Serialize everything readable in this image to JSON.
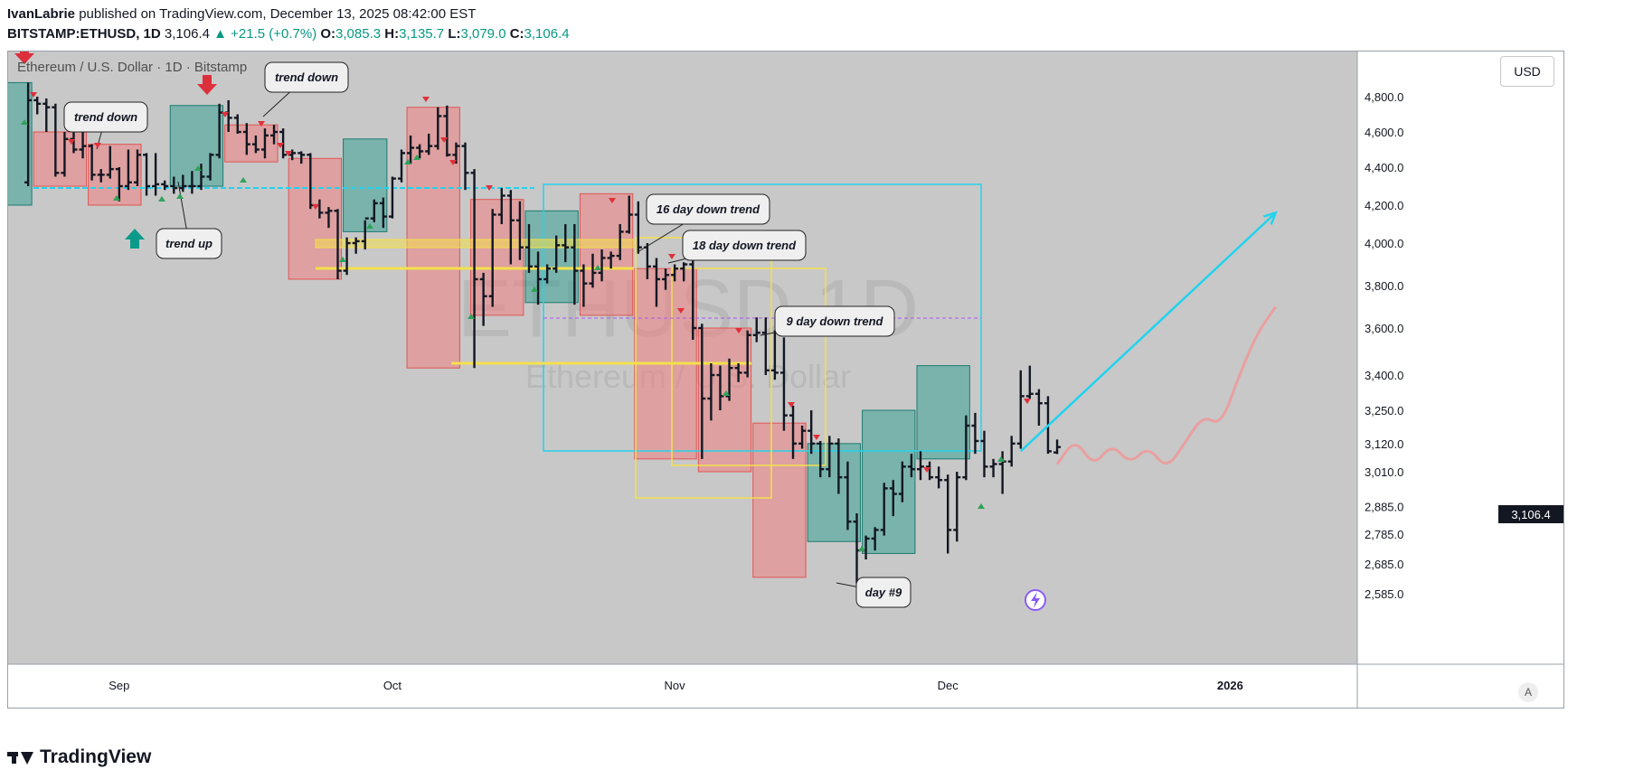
{
  "header": {
    "author": "IvanLabrie",
    "published_text": "published on TradingView.com, December 13, 2025 08:42:00 EST",
    "symbol": "BITSTAMP:ETHUSD, 1D",
    "last": "3,106.4",
    "change": "▲ +21.5 (+0.7%)",
    "o_label": "O:",
    "o": "3,085.3",
    "h_label": "H:",
    "h": "3,135.7",
    "l_label": "L:",
    "l": "3,079.0",
    "c_label": "C:",
    "c": "3,106.4"
  },
  "chart_title": "Ethereum / U.S. Dollar · 1D · Bitstamp",
  "currency_button": "USD",
  "last_price_tag": "3,106.4",
  "auto_button": "A",
  "brand": "TradingView",
  "chart_data": {
    "type": "bar",
    "watermark": {
      "symbol": "ETHUSD, 1D",
      "name": "Ethereum / U.S. Dollar"
    },
    "y_ticks": [
      4800,
      4600,
      4400,
      4200,
      4000,
      3800,
      3600,
      3400,
      3250,
      3010,
      2885,
      2785,
      2685,
      2585
    ],
    "y_tick_labels": [
      "4,800.0",
      "4,600.0",
      "4,400.0",
      "4,200.0",
      "4,000.0",
      "3,800.0",
      "3,600.0",
      "3,400.0",
      "3,250.0",
      "3,010.0",
      "2,885.0",
      "2,785.0",
      "2,685.0",
      "2,585.0"
    ],
    "y_extra_label": "3,120.0",
    "x_labels": [
      {
        "label": "Sep",
        "date": "2025-09-01"
      },
      {
        "label": "Oct",
        "date": "2025-10-01"
      },
      {
        "label": "Nov",
        "date": "2025-11-01"
      },
      {
        "label": "Dec",
        "date": "2025-12-01"
      },
      {
        "label": "2026",
        "date": "2026-01-01"
      }
    ],
    "last_price": 3106.4,
    "ohlc": [
      [
        "2025-08-22",
        4320,
        4880,
        4300,
        4780
      ],
      [
        "2025-08-23",
        4780,
        4800,
        4700,
        4760
      ],
      [
        "2025-08-24",
        4760,
        4790,
        4600,
        4740
      ],
      [
        "2025-08-25",
        4740,
        4760,
        4350,
        4370
      ],
      [
        "2025-08-26",
        4370,
        4600,
        4350,
        4560
      ],
      [
        "2025-08-27",
        4560,
        4620,
        4480,
        4500
      ],
      [
        "2025-08-28",
        4500,
        4620,
        4450,
        4520
      ],
      [
        "2025-08-29",
        4520,
        4530,
        4330,
        4360
      ],
      [
        "2025-08-30",
        4360,
        4390,
        4320,
        4360
      ],
      [
        "2025-08-31",
        4360,
        4520,
        4340,
        4390
      ],
      [
        "2025-09-01",
        4390,
        4400,
        4220,
        4300
      ],
      [
        "2025-09-02",
        4300,
        4500,
        4280,
        4320
      ],
      [
        "2025-09-03",
        4320,
        4500,
        4300,
        4470
      ],
      [
        "2025-09-04",
        4470,
        4480,
        4250,
        4300
      ],
      [
        "2025-09-05",
        4300,
        4480,
        4250,
        4310
      ],
      [
        "2025-09-06",
        4310,
        4330,
        4280,
        4300
      ],
      [
        "2025-09-07",
        4300,
        4350,
        4260,
        4290
      ],
      [
        "2025-09-08",
        4290,
        4360,
        4270,
        4300
      ],
      [
        "2025-09-09",
        4300,
        4380,
        4260,
        4300
      ],
      [
        "2025-09-10",
        4300,
        4420,
        4280,
        4350
      ],
      [
        "2025-09-11",
        4350,
        4480,
        4330,
        4470
      ],
      [
        "2025-09-12",
        4470,
        4760,
        4450,
        4710
      ],
      [
        "2025-09-13",
        4710,
        4780,
        4600,
        4680
      ],
      [
        "2025-09-14",
        4680,
        4700,
        4590,
        4600
      ],
      [
        "2025-09-15",
        4600,
        4650,
        4470,
        4530
      ],
      [
        "2025-09-16",
        4530,
        4580,
        4480,
        4500
      ],
      [
        "2025-09-17",
        4500,
        4620,
        4450,
        4580
      ],
      [
        "2025-09-18",
        4580,
        4640,
        4530,
        4600
      ],
      [
        "2025-09-19",
        4600,
        4620,
        4450,
        4470
      ],
      [
        "2025-09-20",
        4470,
        4500,
        4440,
        4480
      ],
      [
        "2025-09-21",
        4480,
        4490,
        4420,
        4470
      ],
      [
        "2025-09-22",
        4470,
        4480,
        4180,
        4200
      ],
      [
        "2025-09-23",
        4200,
        4230,
        4130,
        4160
      ],
      [
        "2025-09-24",
        4160,
        4190,
        4080,
        4170
      ],
      [
        "2025-09-25",
        4170,
        4180,
        3830,
        3870
      ],
      [
        "2025-09-26",
        3870,
        4030,
        3850,
        4000
      ],
      [
        "2025-09-27",
        4000,
        4030,
        3950,
        4010
      ],
      [
        "2025-09-28",
        4010,
        4120,
        3970,
        4130
      ],
      [
        "2025-09-29",
        4130,
        4230,
        4110,
        4210
      ],
      [
        "2025-09-30",
        4210,
        4240,
        4080,
        4140
      ],
      [
        "2025-10-01",
        4140,
        4350,
        4130,
        4340
      ],
      [
        "2025-10-02",
        4340,
        4500,
        4320,
        4480
      ],
      [
        "2025-10-03",
        4480,
        4580,
        4420,
        4510
      ],
      [
        "2025-10-04",
        4510,
        4530,
        4450,
        4490
      ],
      [
        "2025-10-05",
        4490,
        4590,
        4470,
        4520
      ],
      [
        "2025-10-06",
        4520,
        4740,
        4500,
        4690
      ],
      [
        "2025-10-07",
        4690,
        4750,
        4460,
        4470
      ],
      [
        "2025-10-08",
        4470,
        4540,
        4420,
        4520
      ],
      [
        "2025-10-09",
        4520,
        4540,
        4280,
        4370
      ],
      [
        "2025-10-10",
        4370,
        4390,
        3430,
        3830
      ],
      [
        "2025-10-11",
        3830,
        3860,
        3610,
        3750
      ],
      [
        "2025-10-12",
        3750,
        4180,
        3700,
        4150
      ],
      [
        "2025-10-13",
        4150,
        4290,
        4100,
        4250
      ],
      [
        "2025-10-14",
        4250,
        4280,
        3900,
        4120
      ],
      [
        "2025-10-15",
        4120,
        4220,
        3920,
        3980
      ],
      [
        "2025-10-16",
        3980,
        4100,
        3860,
        3890
      ],
      [
        "2025-10-17",
        3890,
        3960,
        3710,
        3830
      ],
      [
        "2025-10-18",
        3830,
        3900,
        3810,
        3880
      ],
      [
        "2025-10-19",
        3880,
        4040,
        3860,
        3990
      ],
      [
        "2025-10-20",
        3990,
        4100,
        3910,
        3980
      ],
      [
        "2025-10-21",
        3980,
        4100,
        3710,
        3870
      ],
      [
        "2025-10-22",
        3870,
        3900,
        3700,
        3810
      ],
      [
        "2025-10-23",
        3810,
        3950,
        3790,
        3860
      ],
      [
        "2025-10-24",
        3860,
        3970,
        3820,
        3930
      ],
      [
        "2025-10-25",
        3930,
        3960,
        3880,
        3940
      ],
      [
        "2025-10-26",
        3940,
        4100,
        3920,
        4060
      ],
      [
        "2025-10-27",
        4060,
        4250,
        4050,
        4150
      ],
      [
        "2025-10-28",
        4150,
        4220,
        3950,
        3980
      ],
      [
        "2025-10-29",
        3980,
        4000,
        3830,
        3890
      ],
      [
        "2025-10-30",
        3890,
        3930,
        3700,
        3830
      ],
      [
        "2025-10-31",
        3830,
        3880,
        3780,
        3850
      ],
      [
        "2025-11-01",
        3850,
        3900,
        3820,
        3880
      ],
      [
        "2025-11-02",
        3880,
        3910,
        3820,
        3900
      ],
      [
        "2025-11-03",
        3900,
        3920,
        3550,
        3600
      ],
      [
        "2025-11-04",
        3600,
        3620,
        3060,
        3300
      ],
      [
        "2025-11-05",
        3300,
        3450,
        3210,
        3400
      ],
      [
        "2025-11-06",
        3400,
        3440,
        3250,
        3310
      ],
      [
        "2025-11-07",
        3310,
        3470,
        3290,
        3430
      ],
      [
        "2025-11-08",
        3430,
        3450,
        3370,
        3410
      ],
      [
        "2025-11-09",
        3410,
        3590,
        3390,
        3570
      ],
      [
        "2025-11-10",
        3570,
        3650,
        3540,
        3580
      ],
      [
        "2025-11-11",
        3580,
        3650,
        3400,
        3420
      ],
      [
        "2025-11-12",
        3420,
        3590,
        3380,
        3410
      ],
      [
        "2025-11-13",
        3410,
        3560,
        3170,
        3230
      ],
      [
        "2025-11-14",
        3230,
        3270,
        3060,
        3120
      ],
      [
        "2025-11-15",
        3120,
        3190,
        3100,
        3170
      ],
      [
        "2025-11-16",
        3170,
        3250,
        3080,
        3120
      ],
      [
        "2025-11-17",
        3120,
        3130,
        2990,
        3020
      ],
      [
        "2025-11-18",
        3020,
        3150,
        2990,
        3120
      ],
      [
        "2025-11-19",
        3120,
        3140,
        2930,
        2990
      ],
      [
        "2025-11-20",
        2990,
        3050,
        2800,
        2830
      ],
      [
        "2025-11-21",
        2830,
        2860,
        2620,
        2730
      ],
      [
        "2025-11-22",
        2730,
        2780,
        2700,
        2770
      ],
      [
        "2025-11-23",
        2770,
        2810,
        2730,
        2800
      ],
      [
        "2025-11-24",
        2800,
        2970,
        2780,
        2950
      ],
      [
        "2025-11-25",
        2950,
        2980,
        2850,
        2930
      ],
      [
        "2025-11-26",
        2930,
        3050,
        2900,
        3030
      ],
      [
        "2025-11-27",
        3030,
        3080,
        2990,
        3020
      ],
      [
        "2025-11-28",
        3020,
        3090,
        2980,
        3030
      ],
      [
        "2025-11-29",
        3030,
        3050,
        2980,
        2990
      ],
      [
        "2025-11-30",
        2990,
        3030,
        2950,
        2980
      ],
      [
        "2025-12-01",
        2980,
        3000,
        2720,
        2800
      ],
      [
        "2025-12-02",
        2800,
        3010,
        2760,
        2990
      ],
      [
        "2025-12-03",
        2990,
        3230,
        2980,
        3190
      ],
      [
        "2025-12-04",
        3190,
        3240,
        3080,
        3130
      ],
      [
        "2025-12-05",
        3130,
        3170,
        2990,
        3030
      ],
      [
        "2025-12-06",
        3030,
        3060,
        2990,
        3040
      ],
      [
        "2025-12-07",
        3040,
        3090,
        2930,
        3050
      ],
      [
        "2025-12-08",
        3050,
        3150,
        3030,
        3120
      ],
      [
        "2025-12-09",
        3120,
        3420,
        3100,
        3310
      ],
      [
        "2025-12-10",
        3310,
        3440,
        3300,
        3320
      ],
      [
        "2025-12-11",
        3320,
        3340,
        3190,
        3280
      ],
      [
        "2025-12-12",
        3280,
        3310,
        3080,
        3090
      ],
      [
        "2025-12-13",
        3085.3,
        3135.7,
        3079.0,
        3106.4
      ]
    ],
    "zones": [
      {
        "kind": "down",
        "from": "2025-08-23",
        "to": "2025-08-28",
        "lo": 4300,
        "hi": 4600
      },
      {
        "kind": "up",
        "from": "2025-08-20",
        "to": "2025-08-22",
        "lo": 4200,
        "hi": 4880
      },
      {
        "kind": "down",
        "from": "2025-08-29",
        "to": "2025-09-03",
        "lo": 4200,
        "hi": 4530
      },
      {
        "kind": "up",
        "from": "2025-09-07",
        "to": "2025-09-12",
        "lo": 4300,
        "hi": 4750
      },
      {
        "kind": "down",
        "from": "2025-09-13",
        "to": "2025-09-18",
        "lo": 4430,
        "hi": 4640
      },
      {
        "kind": "down",
        "from": "2025-09-20",
        "to": "2025-09-25",
        "lo": 3830,
        "hi": 4450
      },
      {
        "kind": "up",
        "from": "2025-09-26",
        "to": "2025-09-30",
        "lo": 4060,
        "hi": 4560
      },
      {
        "kind": "down",
        "from": "2025-10-03",
        "to": "2025-10-08",
        "lo": 3430,
        "hi": 4740
      },
      {
        "kind": "down",
        "from": "2025-10-10",
        "to": "2025-10-15",
        "lo": 3660,
        "hi": 4230
      },
      {
        "kind": "up",
        "from": "2025-10-16",
        "to": "2025-10-21",
        "lo": 3720,
        "hi": 4170
      },
      {
        "kind": "down",
        "from": "2025-10-22",
        "to": "2025-10-27",
        "lo": 3660,
        "hi": 4260
      },
      {
        "kind": "down",
        "from": "2025-10-28",
        "to": "2025-11-03",
        "lo": 3060,
        "hi": 3880
      },
      {
        "kind": "down",
        "from": "2025-11-04",
        "to": "2025-11-09",
        "lo": 3010,
        "hi": 3600
      },
      {
        "kind": "down",
        "from": "2025-11-10",
        "to": "2025-11-15",
        "lo": 2640,
        "hi": 3200
      },
      {
        "kind": "up",
        "from": "2025-11-16",
        "to": "2025-11-21",
        "lo": 2760,
        "hi": 3120
      },
      {
        "kind": "up",
        "from": "2025-11-22",
        "to": "2025-11-27",
        "lo": 2720,
        "hi": 3250
      },
      {
        "kind": "up",
        "from": "2025-11-28",
        "to": "2025-12-03",
        "lo": 3060,
        "hi": 3440
      }
    ],
    "projection_arrow": {
      "from": [
        "2025-12-09",
        3090
      ],
      "to": [
        "2026-01-06",
        4160
      ]
    },
    "projection_path": [
      [
        "2025-12-13",
        3040
      ],
      [
        "2025-12-15",
        3140
      ],
      [
        "2025-12-17",
        3030
      ],
      [
        "2025-12-19",
        3120
      ],
      [
        "2025-12-21",
        3040
      ],
      [
        "2025-12-23",
        3110
      ],
      [
        "2025-12-25",
        3020
      ],
      [
        "2025-12-27",
        3120
      ],
      [
        "2025-12-29",
        3230
      ],
      [
        "2025-12-31",
        3190
      ],
      [
        "2026-01-02",
        3400
      ],
      [
        "2026-01-04",
        3580
      ],
      [
        "2026-01-06",
        3700
      ]
    ],
    "annotations": [
      {
        "text": "trend down"
      },
      {
        "text": "trend up"
      },
      {
        "text": "trend down"
      },
      {
        "text": "16 day down trend"
      },
      {
        "text": "18 day down trend"
      },
      {
        "text": "9 day down trend"
      },
      {
        "text": "day #9"
      }
    ]
  }
}
